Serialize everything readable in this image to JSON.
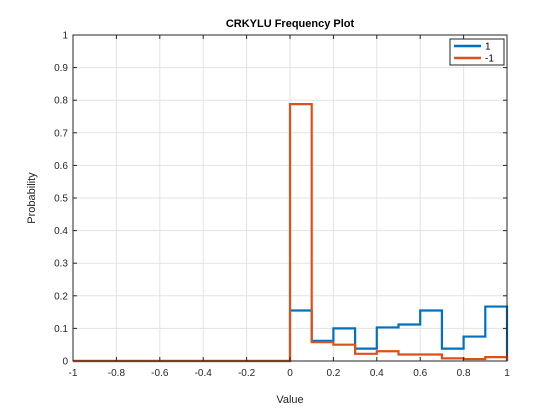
{
  "chart_data": {
    "type": "line",
    "title": "CRKYLU Frequency Plot",
    "xlabel": "Value",
    "ylabel": "Probability",
    "xlim": [
      -1,
      1
    ],
    "ylim": [
      0,
      1
    ],
    "grid": true,
    "legend_position": "top-right",
    "x_ticks": [
      "-1",
      "-0.8",
      "-0.6",
      "-0.4",
      "-0.2",
      "0",
      "0.2",
      "0.4",
      "0.6",
      "0.8",
      "1"
    ],
    "y_ticks": [
      "0",
      "0.1",
      "0.2",
      "0.3",
      "0.4",
      "0.5",
      "0.6",
      "0.7",
      "0.8",
      "0.9",
      "1"
    ],
    "bin_edges": [
      -1,
      0,
      0.1,
      0.2,
      0.3,
      0.4,
      0.5,
      0.6,
      0.7,
      0.8,
      0.9,
      1
    ],
    "series": [
      {
        "name": "1",
        "color": "#0072BD",
        "values": [
          0,
          0.155,
          0.062,
          0.1,
          0.038,
          0.103,
          0.112,
          0.155,
          0.038,
          0.075,
          0.167
        ]
      },
      {
        "name": "-1",
        "color": "#D95319",
        "values": [
          0,
          0.788,
          0.058,
          0.05,
          0.022,
          0.03,
          0.02,
          0.02,
          0.008,
          0.006,
          0.012
        ]
      }
    ]
  }
}
